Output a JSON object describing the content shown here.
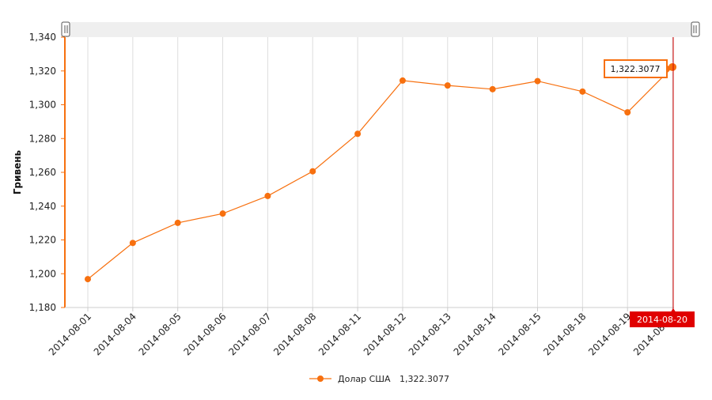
{
  "chart_data": {
    "type": "line",
    "ylabel": "Гривень",
    "ylim": [
      1180,
      1340
    ],
    "yticks": [
      1180,
      1200,
      1220,
      1240,
      1260,
      1280,
      1300,
      1320,
      1340
    ],
    "ytick_labels": [
      "1,180",
      "1,200",
      "1,220",
      "1,240",
      "1,260",
      "1,280",
      "1,300",
      "1,320",
      "1,340"
    ],
    "x": [
      "2014-08-01",
      "2014-08-04",
      "2014-08-05",
      "2014-08-06",
      "2014-08-07",
      "2014-08-08",
      "2014-08-11",
      "2014-08-12",
      "2014-08-13",
      "2014-08-14",
      "2014-08-15",
      "2014-08-18",
      "2014-08-19",
      "2014-08-20"
    ],
    "x_tick_labels": [
      "2014-08-01",
      "2014-08-04",
      "2014-08-05",
      "2014-08-06",
      "2014-08-07",
      "2014-08-08",
      "2014-08-11",
      "2014-08-12",
      "2014-08-13",
      "2014-08-14",
      "2014-08-15",
      "2014-08-18",
      "2014-08-19",
      "2014-08-20"
    ],
    "grid": true,
    "series": [
      {
        "name": "Долар США",
        "color": "#f7700f",
        "values": [
          1196.8,
          1218.2,
          1230.1,
          1235.6,
          1246.0,
          1260.6,
          1282.8,
          1314.3,
          1311.4,
          1309.2,
          1314.0,
          1307.8,
          1295.5,
          1322.3077
        ]
      }
    ],
    "legend": {
      "placement": "bottom-center",
      "series_name": "Долар США",
      "value_text": "1,322.3077"
    },
    "tooltip": {
      "text": "1,322.3077"
    },
    "cursor": {
      "date": "2014-08-20",
      "color": "#e00000"
    }
  }
}
